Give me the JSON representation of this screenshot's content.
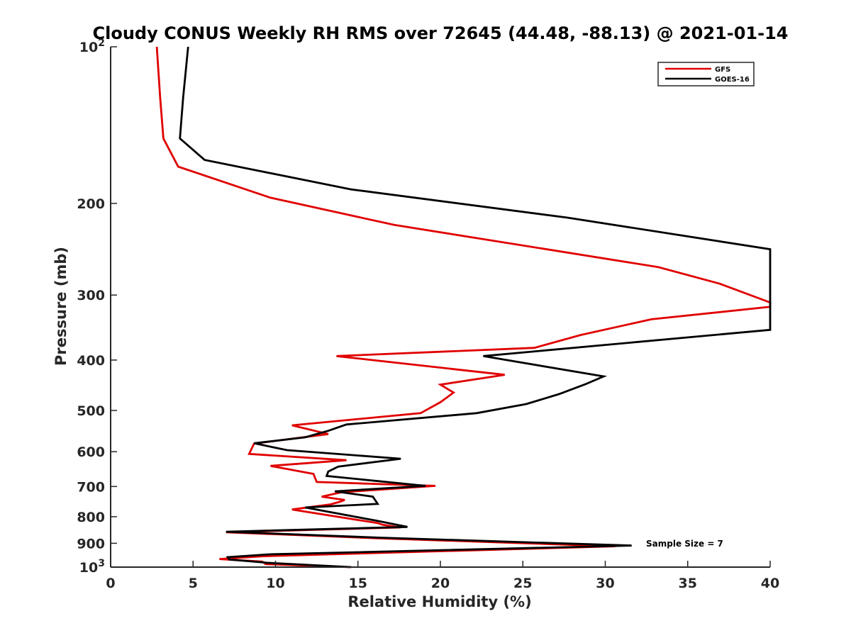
{
  "chart_data": {
    "type": "line",
    "title": "Cloudy CONUS Weekly RH RMS over 72645 (44.48, -88.13) @ 2021-01-14",
    "xlabel": "Relative Humidity (%)",
    "ylabel": "Pressure (mb)",
    "xlim": [
      0,
      40
    ],
    "ylim": [
      1000,
      100
    ],
    "yscale": "log",
    "y_reversed": true,
    "grid": false,
    "legend_position": "top-right",
    "x_ticks": [
      "0",
      "5",
      "10",
      "15",
      "20",
      "25",
      "30",
      "35",
      "40"
    ],
    "y_ticks": [
      {
        "value": 100,
        "label": "10",
        "sup": "2"
      },
      {
        "value": 200,
        "label": "200"
      },
      {
        "value": 300,
        "label": "300"
      },
      {
        "value": 400,
        "label": "400"
      },
      {
        "value": 500,
        "label": "500"
      },
      {
        "value": 600,
        "label": "600"
      },
      {
        "value": 700,
        "label": "700"
      },
      {
        "value": 800,
        "label": "800"
      },
      {
        "value": 900,
        "label": "900"
      },
      {
        "value": 1000,
        "label": "10",
        "sup": "3"
      }
    ],
    "annotation": "Sample Size = 7",
    "series": [
      {
        "name": "GFS",
        "color": "#e00000",
        "points": [
          [
            2.8,
            100
          ],
          [
            3.0,
            125
          ],
          [
            3.2,
            150
          ],
          [
            4.1,
            170
          ],
          [
            9.7,
            195
          ],
          [
            17.2,
            220
          ],
          [
            33.2,
            265
          ],
          [
            36.9,
            285
          ],
          [
            40.0,
            310
          ],
          [
            40.0,
            316
          ],
          [
            32.8,
            334
          ],
          [
            28.5,
            358
          ],
          [
            25.7,
            379
          ],
          [
            13.7,
            393
          ],
          [
            23.9,
            427
          ],
          [
            20.0,
            446
          ],
          [
            20.8,
            462
          ],
          [
            20.0,
            482
          ],
          [
            18.8,
            506
          ],
          [
            11.0,
            534
          ],
          [
            13.2,
            555
          ],
          [
            8.7,
            579
          ],
          [
            8.4,
            606
          ],
          [
            14.3,
            623
          ],
          [
            9.7,
            639
          ],
          [
            12.3,
            662
          ],
          [
            12.5,
            686
          ],
          [
            19.7,
            698
          ],
          [
            14.0,
            718
          ],
          [
            12.8,
            732
          ],
          [
            14.2,
            743
          ],
          [
            13.9,
            749
          ],
          [
            13.3,
            758
          ],
          [
            11.0,
            775
          ],
          [
            16.2,
            823
          ],
          [
            16.5,
            829
          ],
          [
            17.6,
            839
          ],
          [
            7.0,
            857
          ],
          [
            16.2,
            880
          ],
          [
            30.6,
            912
          ],
          [
            9.2,
            953
          ],
          [
            6.6,
            965
          ],
          [
            9.2,
            976
          ],
          [
            9.4,
            987
          ],
          [
            14.5,
            1000
          ]
        ]
      },
      {
        "name": "GOES-16",
        "color": "#000000",
        "points": [
          [
            4.7,
            100
          ],
          [
            4.4,
            125
          ],
          [
            4.2,
            150
          ],
          [
            5.7,
            165
          ],
          [
            14.6,
            188
          ],
          [
            27.7,
            213
          ],
          [
            40.0,
            245
          ],
          [
            40.0,
            350
          ],
          [
            22.6,
            393
          ],
          [
            29.9,
            430
          ],
          [
            28.8,
            445
          ],
          [
            27.2,
            465
          ],
          [
            25.2,
            486
          ],
          [
            22.2,
            506
          ],
          [
            14.3,
            532
          ],
          [
            13.2,
            547
          ],
          [
            11.8,
            563
          ],
          [
            8.7,
            578
          ],
          [
            10.7,
            596
          ],
          [
            17.6,
            619
          ],
          [
            13.8,
            641
          ],
          [
            13.2,
            655
          ],
          [
            13.1,
            668
          ],
          [
            19.1,
            698
          ],
          [
            13.6,
            715
          ],
          [
            15.9,
            732
          ],
          [
            16.2,
            756
          ],
          [
            11.8,
            768
          ],
          [
            16.1,
            814
          ],
          [
            18.0,
            837
          ],
          [
            7.0,
            855
          ],
          [
            16.4,
            878
          ],
          [
            31.6,
            909
          ],
          [
            9.6,
            945
          ],
          [
            7.1,
            957
          ],
          [
            7.2,
            967
          ],
          [
            9.5,
            981
          ],
          [
            14.6,
            1000
          ]
        ]
      }
    ]
  }
}
